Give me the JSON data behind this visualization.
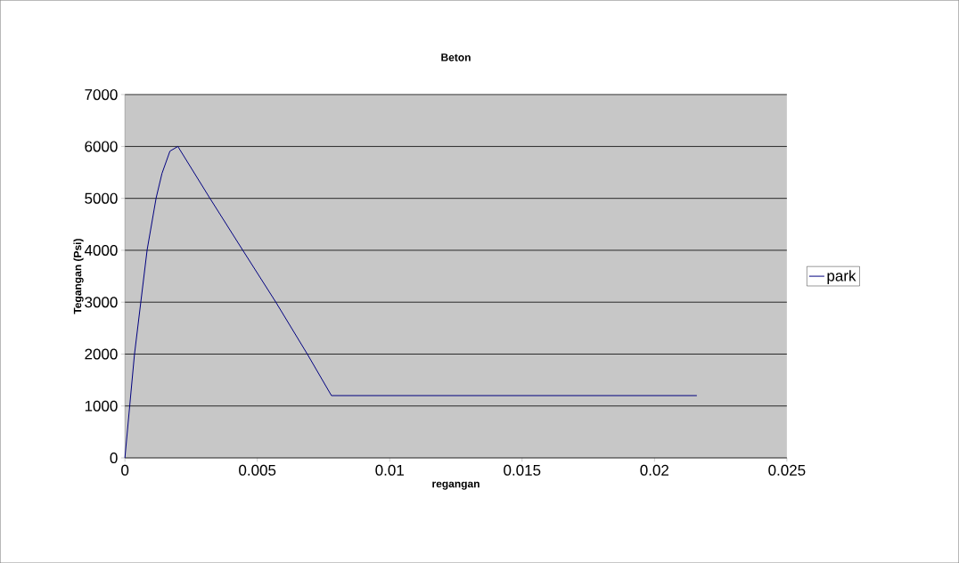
{
  "chart_data": {
    "type": "line",
    "title": "Beton",
    "xlabel": "regangan",
    "ylabel": "Tegangan (Psi)",
    "series": [
      {
        "name": "park",
        "color": "#000080",
        "x": [
          0,
          0.00036,
          0.0006,
          0.00084,
          0.00118,
          0.0014,
          0.0017,
          0.002,
          0.0032,
          0.00444,
          0.0057,
          0.0069,
          0.0078,
          0.0216
        ],
        "values": [
          0,
          1990,
          3000,
          4010,
          5010,
          5480,
          5910,
          6000,
          5010,
          4010,
          3000,
          1990,
          1200,
          1200
        ]
      }
    ],
    "xlim": [
      0,
      0.025
    ],
    "xticks": [
      0,
      0.005,
      0.01,
      0.015,
      0.02,
      0.025
    ],
    "ylim": [
      0,
      7000
    ],
    "yticks": [
      0,
      1000,
      2000,
      3000,
      4000,
      5000,
      6000,
      7000
    ],
    "grid": "y",
    "legend": "right",
    "marker": "none",
    "line_style": "solid"
  }
}
